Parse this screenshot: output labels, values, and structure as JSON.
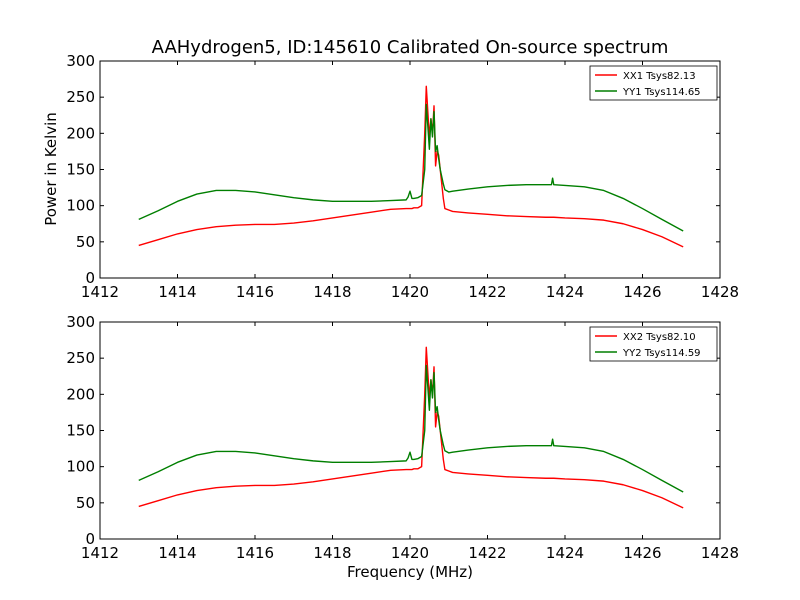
{
  "chart_data": {
    "type": "line",
    "title": "AAHydrogen5, ID:145610 Calibrated On-source spectrum",
    "xlabel": "Frequency (MHz)",
    "ylabel": "Power in Kelvin",
    "xlim": [
      1412,
      1428
    ],
    "ylim": [
      0,
      300
    ],
    "xticks": [
      "1412",
      "1414",
      "1416",
      "1418",
      "1420",
      "1422",
      "1424",
      "1426",
      "1428"
    ],
    "yticks": [
      "0",
      "50",
      "100",
      "150",
      "200",
      "250",
      "300"
    ],
    "legend_position": "top-right",
    "colors": {
      "xx": "#ff0000",
      "yy": "#007f00"
    },
    "x": [
      1413.0,
      1413.5,
      1414.0,
      1414.5,
      1415.0,
      1415.5,
      1416.0,
      1416.5,
      1417.0,
      1417.5,
      1418.0,
      1418.5,
      1419.0,
      1419.5,
      1419.9,
      1419.95,
      1420.0,
      1420.05,
      1420.1,
      1420.2,
      1420.3,
      1420.38,
      1420.42,
      1420.46,
      1420.5,
      1420.54,
      1420.58,
      1420.62,
      1420.66,
      1420.7,
      1420.74,
      1420.78,
      1420.82,
      1420.86,
      1420.9,
      1421.0,
      1421.1,
      1421.5,
      1422.0,
      1422.5,
      1423.0,
      1423.5,
      1423.65,
      1423.68,
      1423.71,
      1424.0,
      1424.5,
      1425.0,
      1425.5,
      1426.0,
      1426.5,
      1427.05
    ],
    "panels": [
      {
        "series": [
          {
            "name": "XX1 Tsys82.13",
            "color": "#ff0000",
            "values": [
              45,
              53,
              61,
              67,
              71,
              73,
              74,
              74,
              76,
              79,
              83,
              87,
              91,
              95,
              96,
              96,
              96,
              96,
              97,
              97,
              100,
              200,
              265,
              230,
              195,
              220,
              200,
              238,
              155,
              175,
              170,
              150,
              130,
              110,
              96,
              94,
              92,
              90,
              88,
              86,
              85,
              84,
              84,
              84,
              84,
              83,
              82,
              80,
              75,
              67,
              57,
              43
            ]
          },
          {
            "name": "YY1 Tsys114.65",
            "color": "#007f00",
            "values": [
              81,
              93,
              106,
              116,
              121,
              121,
              119,
              115,
              111,
              108,
              106,
              106,
              106,
              107,
              108,
              112,
              120,
              110,
              110,
              111,
              114,
              150,
              240,
              210,
              178,
              220,
              195,
              230,
              175,
              183,
              165,
              150,
              140,
              130,
              122,
              119,
              120,
              123,
              126,
              128,
              129,
              129,
              129,
              138,
              129,
              128,
              126,
              121,
              110,
              96,
              81,
              65
            ]
          }
        ]
      },
      {
        "series": [
          {
            "name": "XX2 Tsys82.10",
            "color": "#ff0000",
            "values": [
              45,
              53,
              61,
              67,
              71,
              73,
              74,
              74,
              76,
              79,
              83,
              87,
              91,
              95,
              96,
              96,
              96,
              96,
              97,
              97,
              100,
              200,
              265,
              230,
              195,
              220,
              200,
              238,
              155,
              175,
              170,
              150,
              130,
              110,
              96,
              94,
              92,
              90,
              88,
              86,
              85,
              84,
              84,
              84,
              84,
              83,
              82,
              80,
              75,
              67,
              57,
              43
            ]
          },
          {
            "name": "YY2 Tsys114.59",
            "color": "#007f00",
            "values": [
              81,
              93,
              106,
              116,
              121,
              121,
              119,
              115,
              111,
              108,
              106,
              106,
              106,
              107,
              108,
              112,
              120,
              110,
              110,
              111,
              114,
              150,
              240,
              210,
              178,
              220,
              195,
              230,
              175,
              183,
              165,
              150,
              140,
              130,
              122,
              119,
              120,
              123,
              126,
              128,
              129,
              129,
              129,
              138,
              129,
              128,
              126,
              121,
              110,
              96,
              81,
              65
            ]
          }
        ]
      }
    ]
  }
}
